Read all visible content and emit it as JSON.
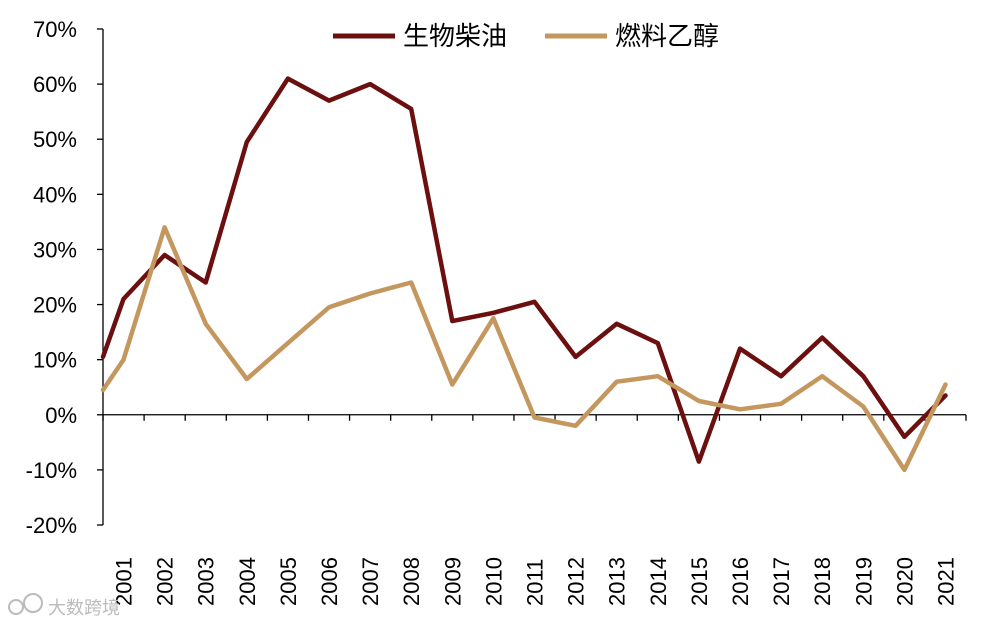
{
  "chart_data": {
    "type": "line",
    "title": "",
    "xlabel": "",
    "ylabel": "",
    "ylim": [
      -20,
      70
    ],
    "y_ticks": [
      -20,
      -10,
      0,
      10,
      20,
      30,
      40,
      50,
      60,
      70
    ],
    "y_tick_labels": [
      "-20%",
      "-10%",
      "0%",
      "10%",
      "20%",
      "30%",
      "40%",
      "50%",
      "60%",
      "70%"
    ],
    "categories": [
      "2001",
      "2002",
      "2003",
      "2004",
      "2005",
      "2006",
      "2007",
      "2008",
      "2009",
      "2010",
      "2011",
      "2012",
      "2013",
      "2014",
      "2015",
      "2016",
      "2017",
      "2018",
      "2019",
      "2020",
      "2021"
    ],
    "legend_position": "top-center",
    "series": [
      {
        "name": "生物柴油",
        "color": "#6b0f0f",
        "start_value": 10.5,
        "values": [
          21.0,
          29.0,
          24.0,
          49.5,
          61.0,
          57.0,
          60.0,
          55.5,
          17.0,
          18.5,
          20.5,
          10.5,
          16.5,
          13.0,
          -8.5,
          12.0,
          7.0,
          14.0,
          7.0,
          -4.0,
          3.5
        ]
      },
      {
        "name": "燃料乙醇",
        "color": "#c4975e",
        "start_value": 4.5,
        "values": [
          10.0,
          34.0,
          16.5,
          6.5,
          13.0,
          19.5,
          22.0,
          24.0,
          5.5,
          17.5,
          -0.5,
          -2.0,
          6.0,
          7.0,
          2.5,
          1.0,
          2.0,
          7.0,
          1.5,
          -10.0,
          5.5
        ]
      }
    ]
  },
  "watermark": "大数跨境",
  "colors": {
    "axis": "#000000",
    "background": "#ffffff"
  }
}
